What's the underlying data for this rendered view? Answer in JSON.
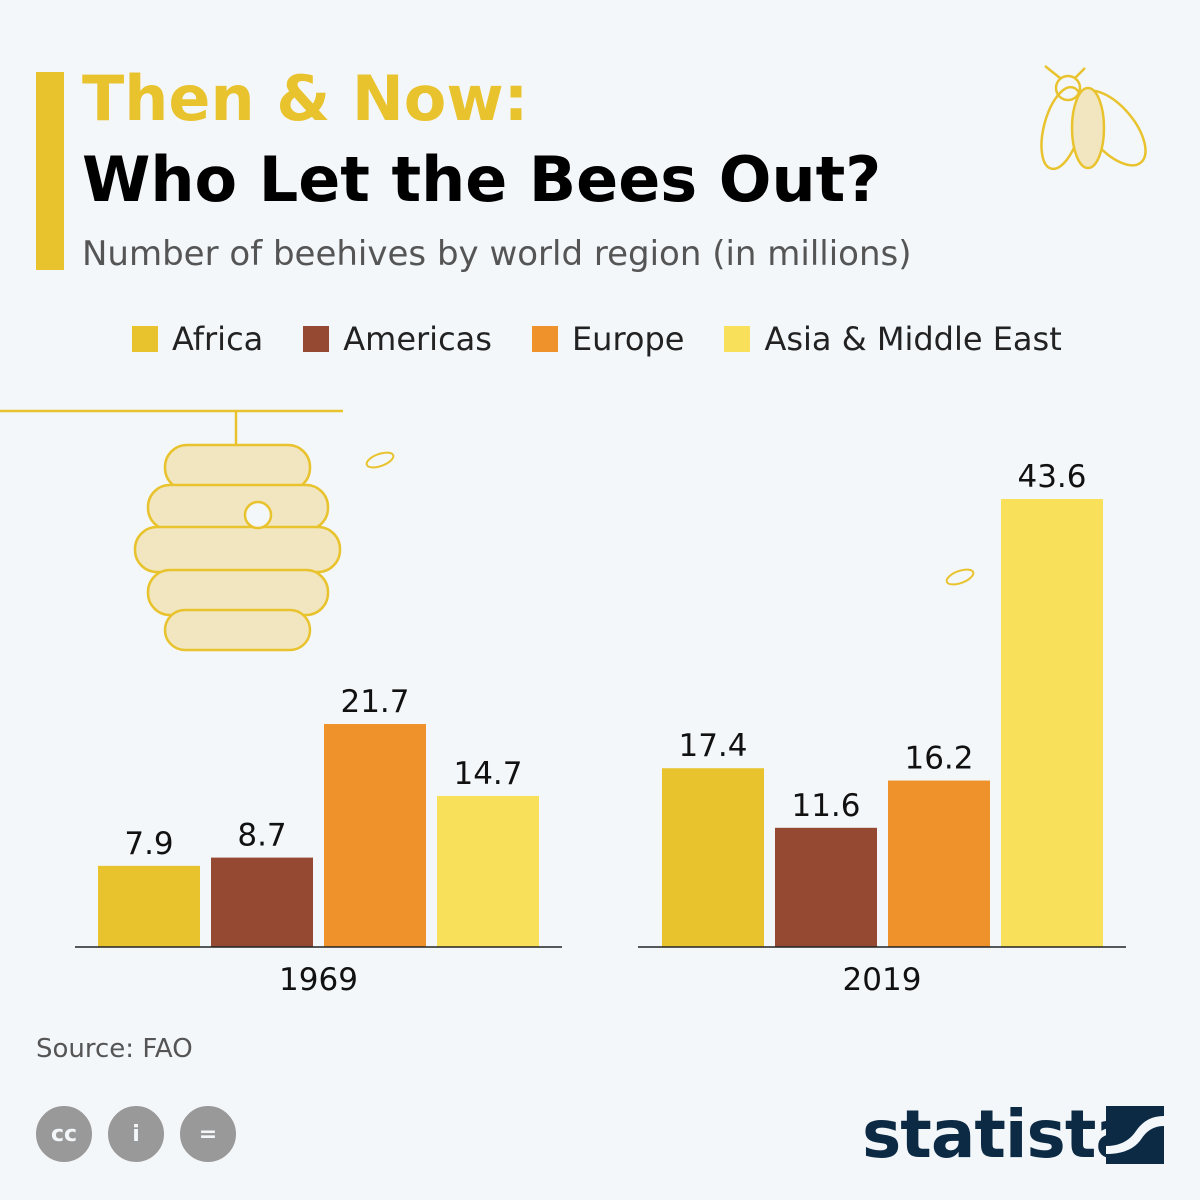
{
  "header": {
    "title_line1": "Then & Now:",
    "title_line2": "Who Let the Bees Out?",
    "subtitle": "Number of beehives by world region (in millions)"
  },
  "footer": {
    "source": "Source: FAO",
    "brand": "statista"
  },
  "colors": {
    "Africa": "#E9C32E",
    "Americas": "#954832",
    "Europe": "#EF922B",
    "Asia & Middle East": "#F9E05A",
    "accent": "#E9C32E"
  },
  "chart_data": {
    "type": "bar",
    "categories": [
      "1969",
      "2019"
    ],
    "series": [
      {
        "name": "Africa",
        "values": [
          7.9,
          17.4
        ]
      },
      {
        "name": "Americas",
        "values": [
          8.7,
          11.6
        ]
      },
      {
        "name": "Europe",
        "values": [
          21.7,
          16.2
        ]
      },
      {
        "name": "Asia & Middle East",
        "values": [
          14.7,
          43.6
        ]
      }
    ],
    "data_labels": true,
    "legend": "top",
    "grid": false,
    "ylim": [
      0,
      43.6
    ]
  }
}
